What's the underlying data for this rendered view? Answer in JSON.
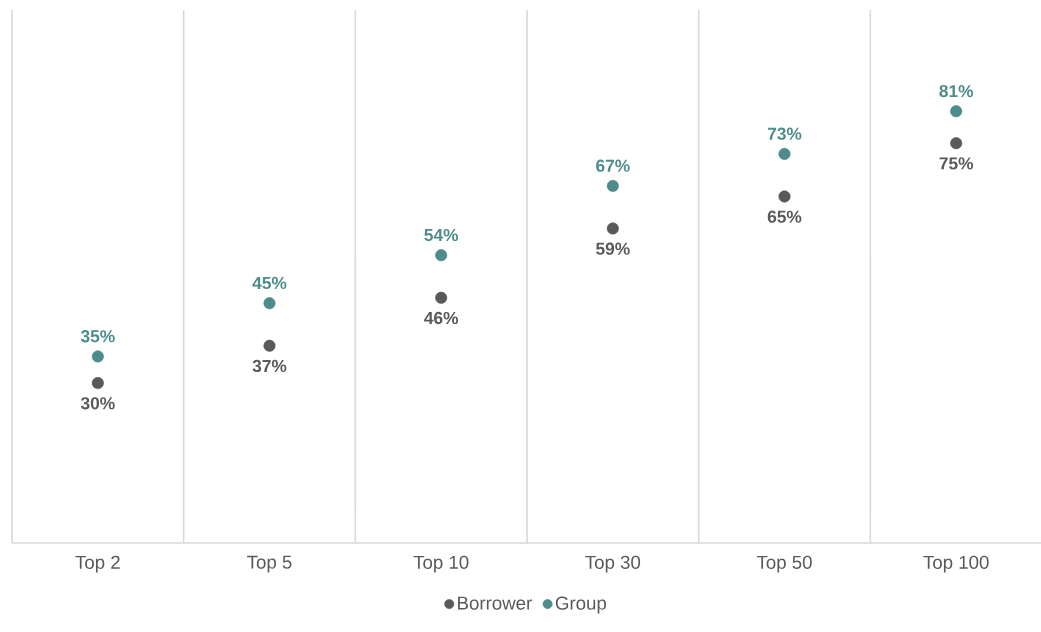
{
  "chart_data": {
    "type": "scatter",
    "categories": [
      "Top 2",
      "Top 5",
      "Top 10",
      "Top 30",
      "Top 50",
      "Top 100"
    ],
    "series": [
      {
        "name": "Borrower",
        "color": "#595959",
        "values": [
          30,
          37,
          46,
          59,
          65,
          75
        ],
        "value_labels": [
          "30%",
          "37%",
          "46%",
          "59%",
          "65%",
          "75%"
        ]
      },
      {
        "name": "Group",
        "color": "#4e8c8c",
        "values": [
          35,
          45,
          54,
          67,
          73,
          81
        ],
        "value_labels": [
          "35%",
          "45%",
          "54%",
          "67%",
          "73%",
          "81%"
        ]
      }
    ],
    "ylim": [
      0,
      100
    ],
    "tick_labels": "x",
    "grid": "x",
    "legend": "bottom"
  }
}
